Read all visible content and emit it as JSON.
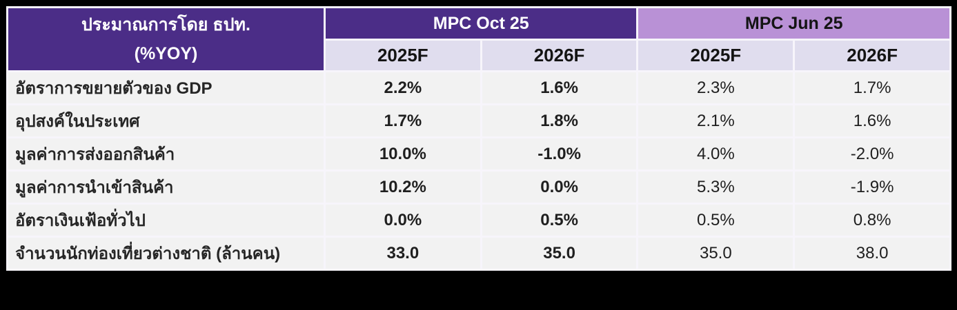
{
  "chart_data": {
    "type": "table",
    "title_line1": "ประมาณการโดย ธปท.",
    "title_line2": "(%YOY)",
    "column_groups": [
      {
        "label": "MPC Oct 25",
        "columns": [
          "2025F",
          "2026F"
        ]
      },
      {
        "label": "MPC Jun 25",
        "columns": [
          "2025F",
          "2026F"
        ]
      }
    ],
    "subheaders": [
      "2025F",
      "2026F",
      "2025F",
      "2026F"
    ],
    "rows": [
      {
        "label": "อัตราการขยายตัวของ GDP",
        "values": [
          "2.2%",
          "1.6%",
          "2.3%",
          "1.7%"
        ]
      },
      {
        "label": "อุปสงค์ในประเทศ",
        "values": [
          "1.7%",
          "1.8%",
          "2.1%",
          "1.6%"
        ]
      },
      {
        "label": "มูลค่าการส่งออกสินค้า",
        "values": [
          "10.0%",
          "-1.0%",
          "4.0%",
          "-2.0%"
        ]
      },
      {
        "label": "มูลค่าการนำเข้าสินค้า",
        "values": [
          "10.2%",
          "0.0%",
          "5.3%",
          "-1.9%"
        ]
      },
      {
        "label": "อัตราเงินเฟ้อทั่วไป",
        "values": [
          "0.0%",
          "0.5%",
          "0.5%",
          "0.8%"
        ]
      },
      {
        "label": "จำนวนนักท่องเที่ยวต่างชาติ (ล้านคน)",
        "values": [
          "33.0",
          "35.0",
          "35.0",
          "38.0"
        ]
      }
    ]
  },
  "colors": {
    "page_background": "#000000",
    "header_dark_purple": "#4b2d87",
    "header_light_purple": "#b991d6",
    "subheader_lavender": "#e0ddee",
    "row_gray": "#f2f2f2",
    "gridline_white": "#f7f5fb",
    "header_text_white": "#ffffff",
    "body_text_dark": "#1f1f1f"
  }
}
